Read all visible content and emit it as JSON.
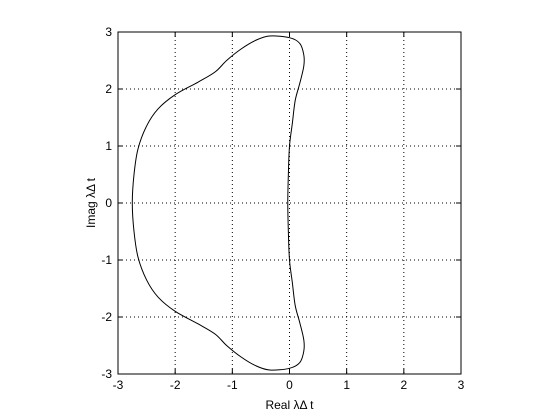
{
  "chart_data": {
    "type": "line",
    "title": "",
    "xlabel": "Real λΔ t",
    "ylabel": "Imag λΔ t",
    "xlim": [
      -3,
      3
    ],
    "ylim": [
      -3,
      3
    ],
    "grid": true,
    "grid_style": "dotted",
    "x_ticks": [
      -3,
      -2,
      -1,
      0,
      1,
      2,
      3
    ],
    "y_ticks": [
      -3,
      -2,
      -1,
      0,
      1,
      2,
      3
    ],
    "x_tick_labels": [
      "-3",
      "-2",
      "-1",
      "0",
      "1",
      "2",
      "3"
    ],
    "y_tick_labels": [
      "-3",
      "-2",
      "-1",
      "0",
      "1",
      "2",
      "3"
    ],
    "colors": {
      "background": "#ffffff",
      "axes": "#000000",
      "grid": "#000000",
      "line": "#000000"
    },
    "series": [
      {
        "closed": true,
        "points": [
          [
            -0.03,
            0.0
          ],
          [
            -0.02,
            0.5
          ],
          [
            0.0,
            1.0
          ],
          [
            0.05,
            1.4
          ],
          [
            0.1,
            1.8
          ],
          [
            0.18,
            2.1
          ],
          [
            0.25,
            2.4
          ],
          [
            0.25,
            2.6
          ],
          [
            0.18,
            2.8
          ],
          [
            0.0,
            2.9
          ],
          [
            -0.35,
            2.93
          ],
          [
            -0.6,
            2.85
          ],
          [
            -0.85,
            2.7
          ],
          [
            -1.1,
            2.5
          ],
          [
            -1.3,
            2.3
          ],
          [
            -1.6,
            2.12
          ],
          [
            -2.0,
            1.9
          ],
          [
            -2.3,
            1.65
          ],
          [
            -2.5,
            1.35
          ],
          [
            -2.65,
            0.95
          ],
          [
            -2.72,
            0.5
          ],
          [
            -2.75,
            0.0
          ],
          [
            -2.72,
            -0.5
          ],
          [
            -2.65,
            -0.95
          ],
          [
            -2.5,
            -1.35
          ],
          [
            -2.3,
            -1.65
          ],
          [
            -2.0,
            -1.9
          ],
          [
            -1.6,
            -2.12
          ],
          [
            -1.3,
            -2.3
          ],
          [
            -1.1,
            -2.5
          ],
          [
            -0.85,
            -2.7
          ],
          [
            -0.6,
            -2.85
          ],
          [
            -0.35,
            -2.93
          ],
          [
            0.0,
            -2.9
          ],
          [
            0.18,
            -2.8
          ],
          [
            0.25,
            -2.6
          ],
          [
            0.25,
            -2.4
          ],
          [
            0.18,
            -2.1
          ],
          [
            0.1,
            -1.8
          ],
          [
            0.05,
            -1.4
          ],
          [
            0.0,
            -1.0
          ],
          [
            -0.02,
            -0.5
          ]
        ]
      }
    ]
  }
}
